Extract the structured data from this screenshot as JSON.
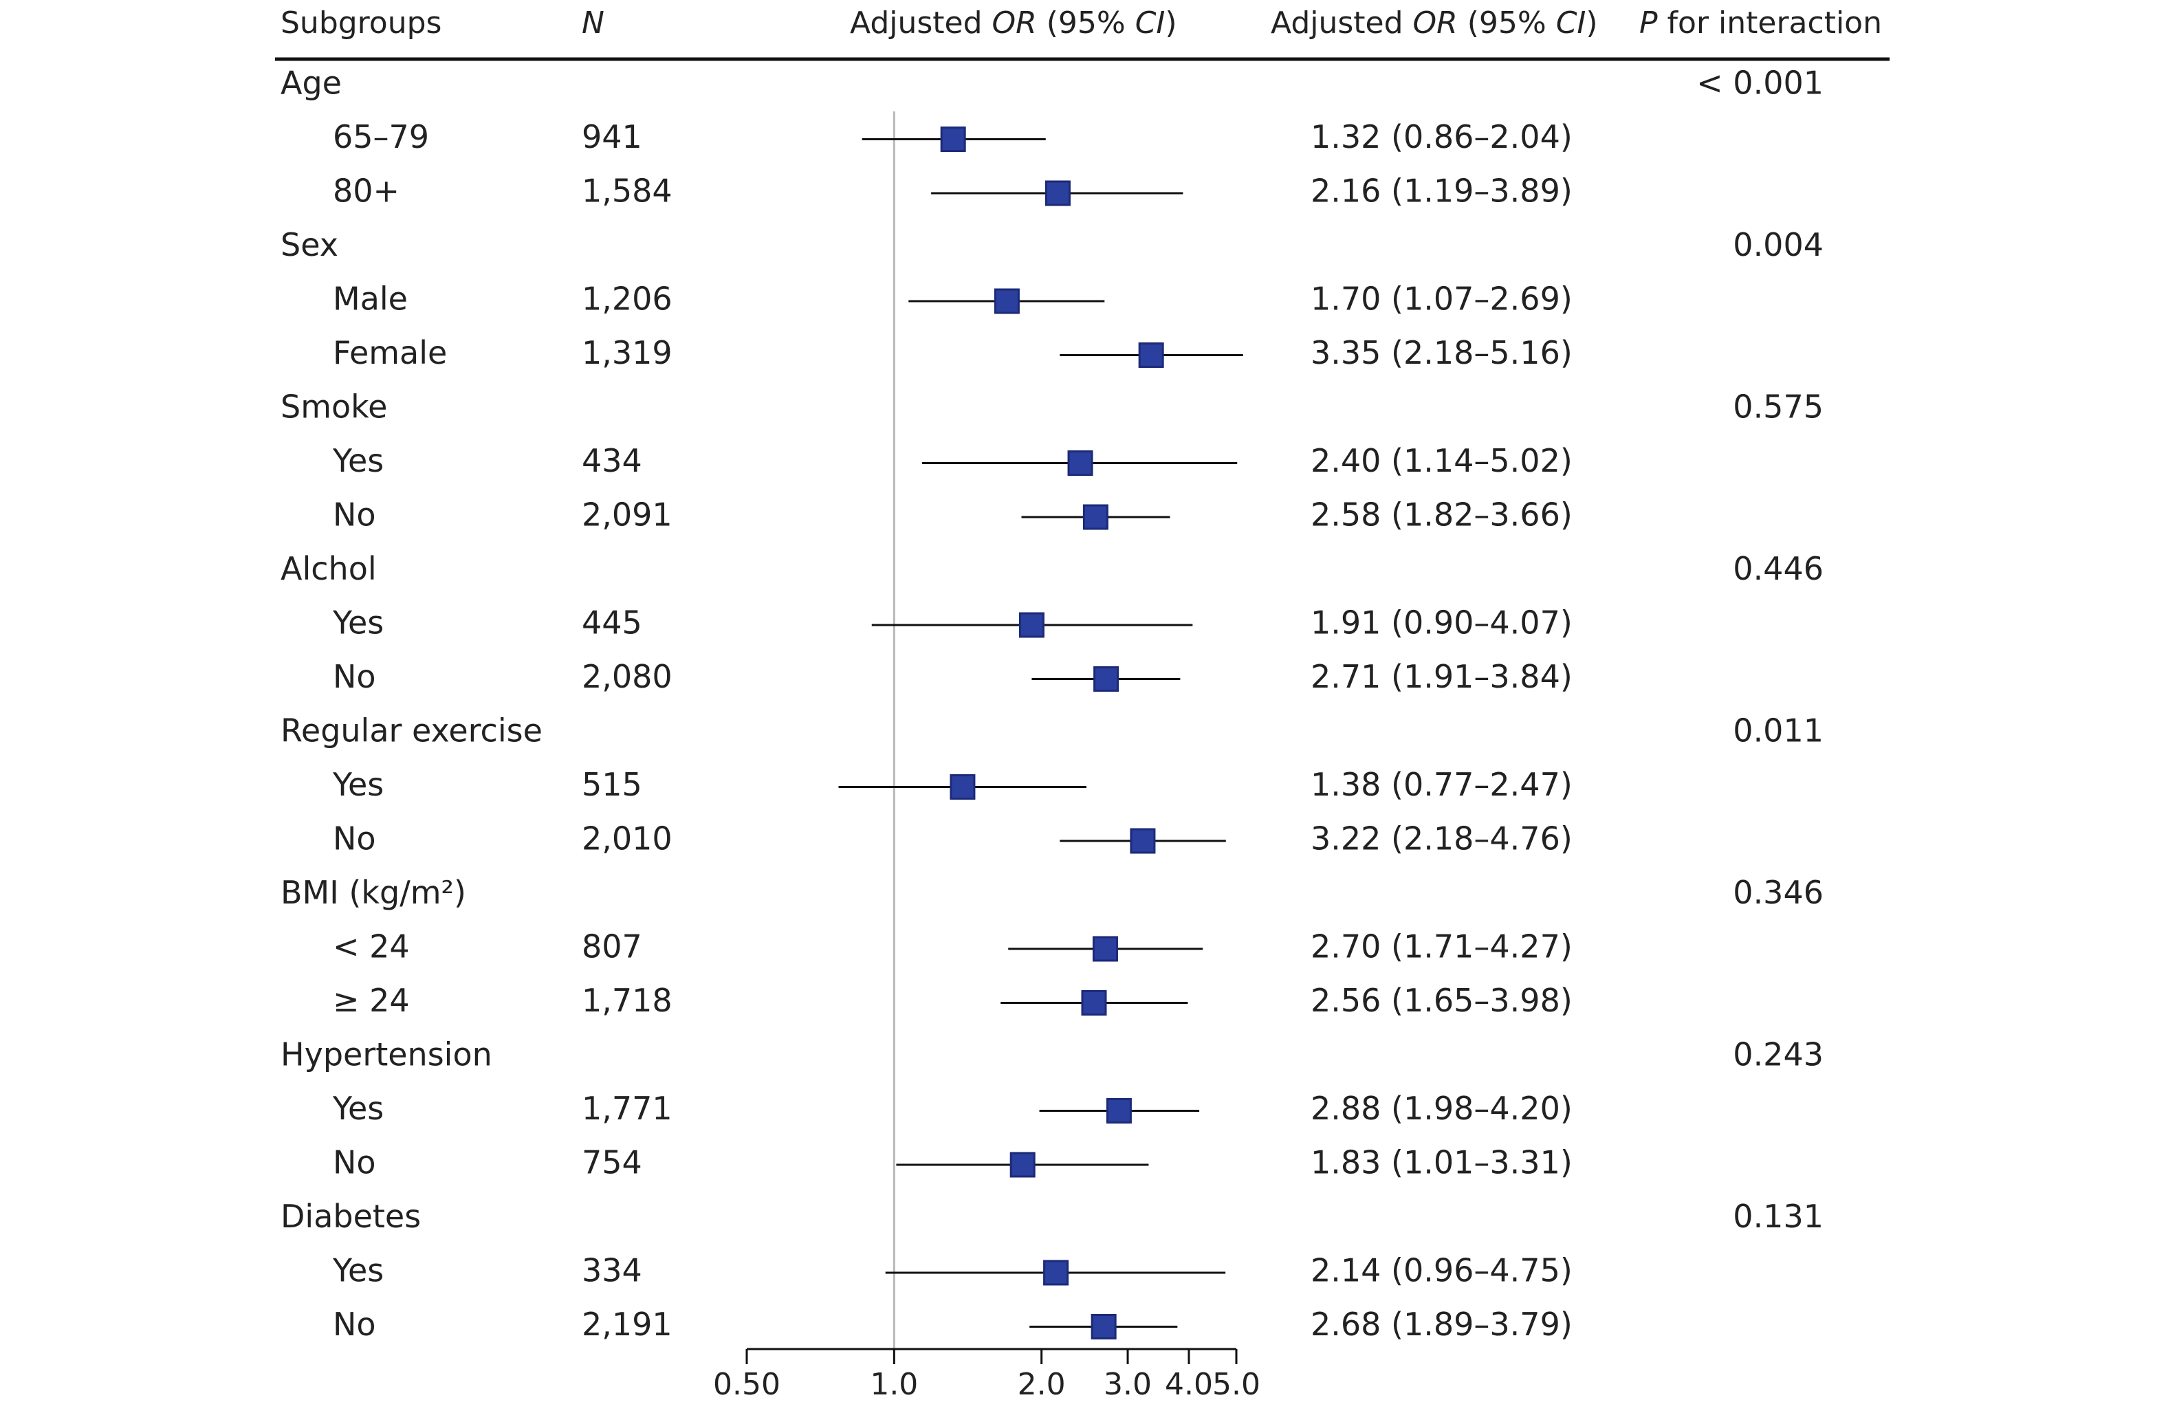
{
  "header": {
    "subgroups": "Subgroups",
    "n": "N",
    "plot_prefix": "Adjusted ",
    "plot_or": "OR",
    "plot_mid": " (95% ",
    "plot_ci": "CI",
    "plot_suffix": ")",
    "est_prefix": "Adjusted ",
    "est_or": "OR",
    "est_mid": " (95% ",
    "est_ci": "CI",
    "est_suffix": ")",
    "p_italic": "P",
    "p_rest": " for interaction"
  },
  "colors": {
    "marker": "#2B3F9E",
    "marker_edge": "#1c2a78",
    "reference_line": "#b8b8b8",
    "text": "#222222"
  },
  "chart_data": {
    "type": "forest",
    "x_scale": "log",
    "xlim": [
      0.5,
      5.0
    ],
    "reference_value": 1.0,
    "x_ticks": [
      0.5,
      1.0,
      2.0,
      3.0,
      4.0,
      5.0
    ],
    "x_tick_labels": [
      "0.50",
      "1.0",
      "2.0",
      "3.0",
      "4.0",
      "5.0"
    ],
    "groups": [
      {
        "label": "Age",
        "p_interaction": "< 0.001",
        "rows": [
          {
            "label": "65–79",
            "n": "941",
            "or": 1.32,
            "lower": 0.86,
            "upper": 2.04,
            "text": "1.32 (0.86–2.04)"
          },
          {
            "label": "80+",
            "n": "1,584",
            "or": 2.16,
            "lower": 1.19,
            "upper": 3.89,
            "text": "2.16 (1.19–3.89)"
          }
        ]
      },
      {
        "label": "Sex",
        "p_interaction": "0.004",
        "rows": [
          {
            "label": "Male",
            "n": "1,206",
            "or": 1.7,
            "lower": 1.07,
            "upper": 2.69,
            "text": "1.70 (1.07–2.69)"
          },
          {
            "label": "Female",
            "n": "1,319",
            "or": 3.35,
            "lower": 2.18,
            "upper": 5.16,
            "text": "3.35 (2.18–5.16)"
          }
        ]
      },
      {
        "label": "Smoke",
        "p_interaction": "0.575",
        "rows": [
          {
            "label": "Yes",
            "n": "434",
            "or": 2.4,
            "lower": 1.14,
            "upper": 5.02,
            "text": "2.40 (1.14–5.02)"
          },
          {
            "label": "No",
            "n": "2,091",
            "or": 2.58,
            "lower": 1.82,
            "upper": 3.66,
            "text": "2.58 (1.82–3.66)"
          }
        ]
      },
      {
        "label": "Alchol",
        "p_interaction": "0.446",
        "rows": [
          {
            "label": "Yes",
            "n": "445",
            "or": 1.91,
            "lower": 0.9,
            "upper": 4.07,
            "text": "1.91 (0.90–4.07)"
          },
          {
            "label": "No",
            "n": "2,080",
            "or": 2.71,
            "lower": 1.91,
            "upper": 3.84,
            "text": "2.71 (1.91–3.84)"
          }
        ]
      },
      {
        "label": "Regular exercise",
        "p_interaction": "0.011",
        "rows": [
          {
            "label": "Yes",
            "n": "515",
            "or": 1.38,
            "lower": 0.77,
            "upper": 2.47,
            "text": "1.38 (0.77–2.47)"
          },
          {
            "label": "No",
            "n": "2,010",
            "or": 3.22,
            "lower": 2.18,
            "upper": 4.76,
            "text": "3.22 (2.18–4.76)"
          }
        ]
      },
      {
        "label": "BMI (kg/m²)",
        "p_interaction": "0.346",
        "rows": [
          {
            "label": "< 24",
            "n": "807",
            "or": 2.7,
            "lower": 1.71,
            "upper": 4.27,
            "text": "2.70 (1.71–4.27)"
          },
          {
            "label": "≥ 24",
            "n": "1,718",
            "or": 2.56,
            "lower": 1.65,
            "upper": 3.98,
            "text": "2.56 (1.65–3.98)"
          }
        ]
      },
      {
        "label": "Hypertension",
        "p_interaction": "0.243",
        "rows": [
          {
            "label": "Yes",
            "n": "1,771",
            "or": 2.88,
            "lower": 1.98,
            "upper": 4.2,
            "text": "2.88 (1.98–4.20)"
          },
          {
            "label": "No",
            "n": "754",
            "or": 1.83,
            "lower": 1.01,
            "upper": 3.31,
            "text": "1.83 (1.01–3.31)"
          }
        ]
      },
      {
        "label": "Diabetes",
        "p_interaction": "0.131",
        "rows": [
          {
            "label": "Yes",
            "n": "334",
            "or": 2.14,
            "lower": 0.96,
            "upper": 4.75,
            "text": "2.14 (0.96–4.75)"
          },
          {
            "label": "No",
            "n": "2,191",
            "or": 2.68,
            "lower": 1.89,
            "upper": 3.79,
            "text": "2.68 (1.89–3.79)"
          }
        ]
      }
    ]
  }
}
